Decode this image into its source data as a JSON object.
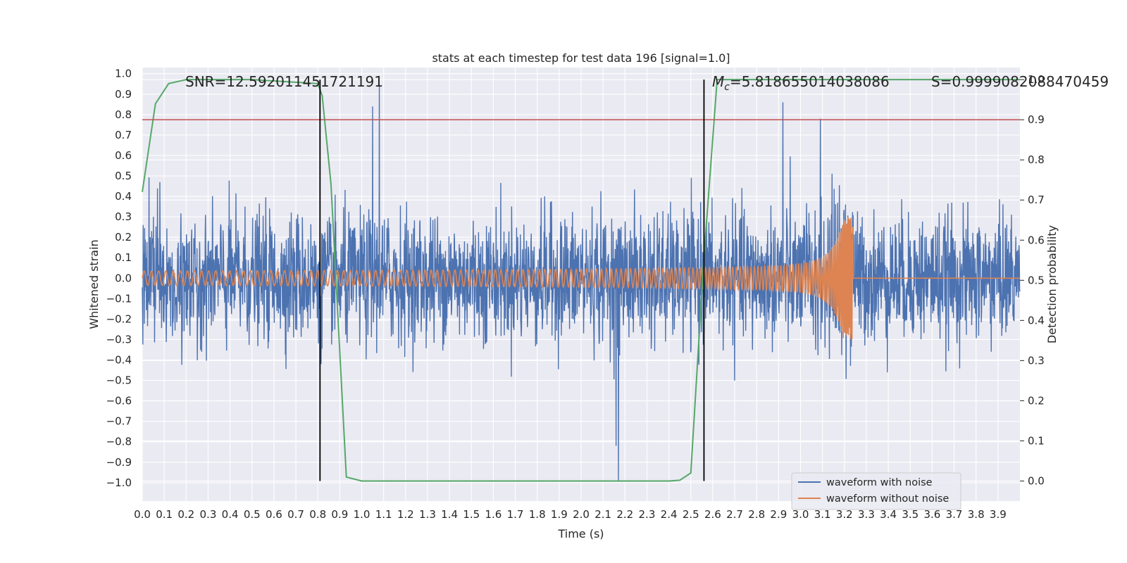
{
  "chart_data": {
    "type": "line",
    "title": "stats at each timestep for test data 196 [signal=1.0]",
    "xlabel": "Time (s)",
    "ylabel_left": "Whitened strain",
    "ylabel_right": "Detection probability",
    "xlim": [
      0.0,
      4.0
    ],
    "ylim_left": [
      -1.09,
      1.03
    ],
    "ylim_right": [
      -0.05,
      1.03
    ],
    "x_ticks": [
      "0.0",
      "0.1",
      "0.2",
      "0.3",
      "0.4",
      "0.5",
      "0.6",
      "0.7",
      "0.8",
      "0.9",
      "1.0",
      "1.1",
      "1.2",
      "1.3",
      "1.4",
      "1.5",
      "1.6",
      "1.7",
      "1.8",
      "1.9",
      "2.0",
      "2.1",
      "2.2",
      "2.3",
      "2.4",
      "2.5",
      "2.6",
      "2.7",
      "2.8",
      "2.9",
      "3.0",
      "3.1",
      "3.2",
      "3.3",
      "3.4",
      "3.5",
      "3.6",
      "3.7",
      "3.8",
      "3.9"
    ],
    "y_ticks_left": [
      "1.0",
      "0.9",
      "0.8",
      "0.7",
      "0.6",
      "0.5",
      "0.4",
      "0.3",
      "0.2",
      "0.1",
      "0.0",
      "−0.1",
      "−0.2",
      "−0.3",
      "−0.4",
      "−0.5",
      "−0.6",
      "−0.7",
      "−0.8",
      "−0.9",
      "−1.0"
    ],
    "y_ticks_right": [
      "1.0",
      "0.9",
      "0.8",
      "0.7",
      "0.6",
      "0.5",
      "0.4",
      "0.3",
      "0.2",
      "0.1",
      "0.0"
    ],
    "grid": true,
    "legend_placement": "lower-right",
    "series": [
      {
        "name": "waveform with noise",
        "axis": "left",
        "color": "#4c72b0",
        "kind": "noise",
        "duration": 4.0,
        "sigma": 0.15,
        "peak_extremes": [
          [
            1.08,
            0.94
          ],
          [
            1.05,
            0.84
          ],
          [
            2.17,
            -0.99
          ],
          [
            2.16,
            -0.82
          ],
          [
            2.92,
            0.86
          ],
          [
            3.09,
            0.78
          ],
          [
            0.08,
            0.47
          ]
        ]
      },
      {
        "name": "waveform without noise",
        "axis": "left",
        "color": "#dd8452",
        "kind": "chirp",
        "start_amplitude": 0.035,
        "peak_amplitude": 0.3,
        "merger_time": 3.24,
        "start_frequency": 30
      },
      {
        "name": "detection probability",
        "axis": "right",
        "color": "#55a868",
        "x": [
          0.0,
          0.06,
          0.12,
          0.2,
          0.3,
          0.5,
          0.8,
          0.82,
          0.86,
          0.93,
          1.0,
          2.0,
          2.4,
          2.45,
          2.5,
          2.56,
          2.62,
          3.0,
          4.0
        ],
        "y": [
          0.72,
          0.94,
          0.99,
          1.0,
          1.0,
          1.0,
          0.99,
          0.96,
          0.74,
          0.01,
          0.0,
          0.0,
          0.0,
          0.002,
          0.02,
          0.56,
          1.0,
          1.0,
          1.0
        ]
      }
    ],
    "threshold": {
      "axis": "right",
      "y": 0.9,
      "color": "#c44e52"
    },
    "vlines": [
      0.81,
      2.56
    ],
    "annotations": {
      "snr": "SNR=12.592011451721191",
      "mc_symbol": "M",
      "mc_sub": "c",
      "mc_value": "=5.818655014038086",
      "s_value": "S=0.9999082088470459"
    }
  }
}
